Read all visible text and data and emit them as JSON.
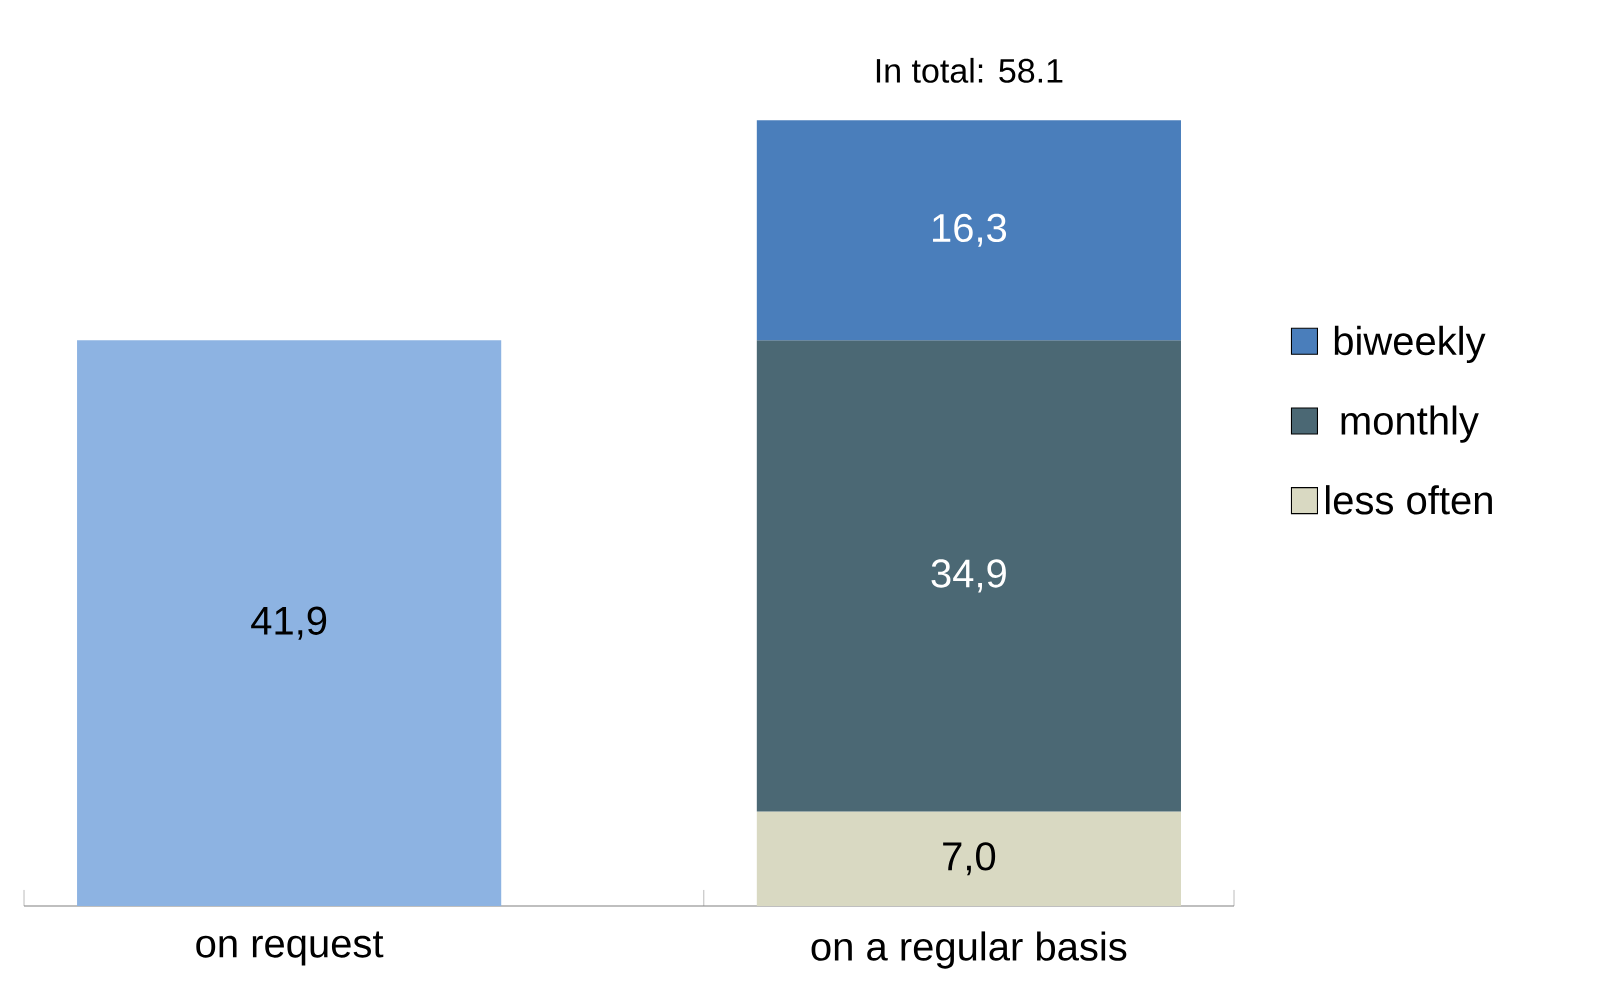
{
  "chart_data": {
    "type": "bar",
    "stacked": true,
    "categories": [
      "on request",
      "on a regular basis"
    ],
    "series": [
      {
        "color": "#8db3e2",
        "values": [
          41.9,
          null
        ],
        "value_labels": [
          "41,9",
          null
        ]
      },
      {
        "name": "less often",
        "color": "#d9d9c2",
        "values": [
          null,
          7.0
        ],
        "value_labels": [
          null,
          "7,0"
        ]
      },
      {
        "name": "monthly",
        "color": "#4b6874",
        "values": [
          null,
          34.9
        ],
        "value_labels": [
          null,
          "34,9"
        ]
      },
      {
        "name": "biweekly",
        "color": "#4a7ebb",
        "values": [
          null,
          16.3
        ],
        "value_labels": [
          null,
          "16,3"
        ]
      }
    ],
    "totals": [
      null,
      "In total: 58.1"
    ],
    "legend": "right",
    "grid": false
  }
}
